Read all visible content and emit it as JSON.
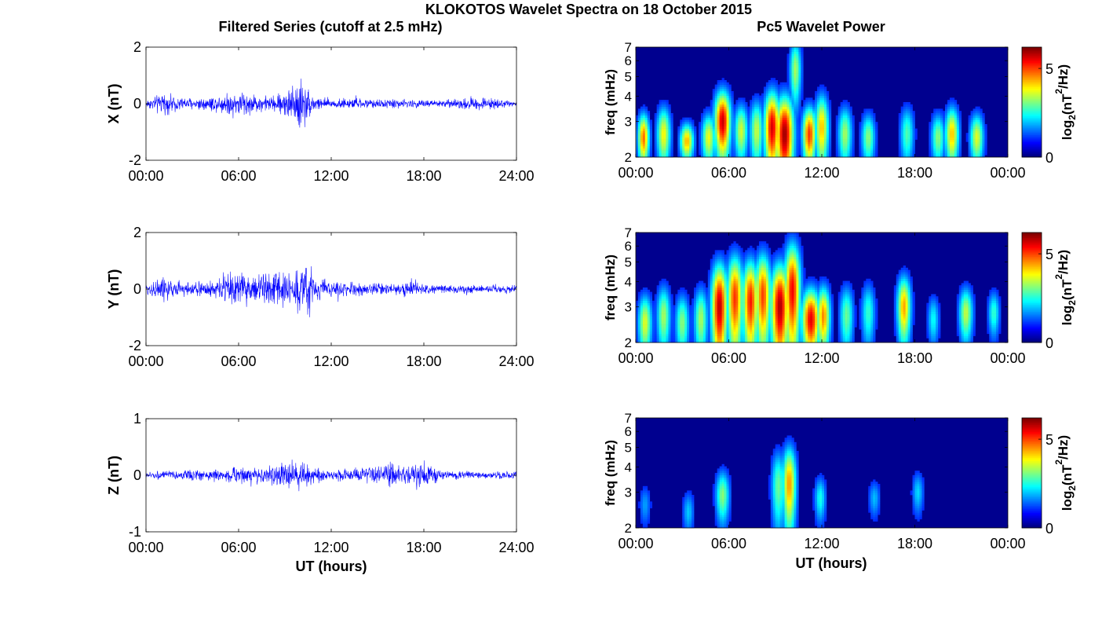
{
  "figure": {
    "title": "KLOKOTOS Wavelet Spectra on 18 October 2015",
    "left_title": "Filtered Series (cutoff at 2.5 mHz)",
    "right_title": "Pc5 Wavelet Power"
  },
  "chart_data": [
    {
      "type": "line",
      "panel": "X",
      "ylabel": "X (nT)",
      "xlabel": "",
      "xlim": [
        0,
        24
      ],
      "ylim": [
        -2,
        2
      ],
      "yticks": [
        "-2",
        "0",
        "2"
      ],
      "xticks": [
        "00:00",
        "06:00",
        "12:00",
        "18:00",
        "24:00"
      ],
      "color": "#0000ff",
      "envelope": {
        "hours": [
          0,
          1,
          2,
          3,
          4,
          5,
          6,
          7,
          8,
          9,
          9.5,
          10,
          10.3,
          11,
          12,
          13,
          14,
          15,
          16,
          17,
          18,
          19,
          20,
          21,
          22,
          23,
          24
        ],
        "amplitude_nT": [
          0.2,
          0.5,
          0.35,
          0.3,
          0.35,
          0.45,
          0.7,
          0.45,
          0.35,
          0.6,
          1.0,
          1.5,
          0.9,
          0.35,
          0.25,
          0.25,
          0.25,
          0.2,
          0.25,
          0.2,
          0.2,
          0.2,
          0.2,
          0.35,
          0.3,
          0.2,
          0.1
        ]
      }
    },
    {
      "type": "line",
      "panel": "Y",
      "ylabel": "Y (nT)",
      "xlabel": "",
      "xlim": [
        0,
        24
      ],
      "ylim": [
        -2,
        2
      ],
      "yticks": [
        "-2",
        "0",
        "2"
      ],
      "xticks": [
        "00:00",
        "06:00",
        "12:00",
        "18:00",
        "24:00"
      ],
      "color": "#0000ff",
      "envelope": {
        "hours": [
          0,
          1,
          2,
          3,
          4,
          5,
          5.5,
          6,
          7,
          8,
          9,
          10,
          10.2,
          11,
          12,
          13,
          14,
          15,
          16,
          17,
          17.5,
          18,
          19,
          20,
          21,
          22,
          23,
          24
        ],
        "amplitude_nT": [
          0.3,
          0.6,
          0.4,
          0.35,
          0.4,
          0.7,
          1.0,
          0.9,
          0.6,
          0.8,
          0.9,
          1.1,
          1.7,
          0.6,
          0.35,
          0.35,
          0.3,
          0.3,
          0.25,
          0.4,
          0.5,
          0.25,
          0.2,
          0.2,
          0.2,
          0.2,
          0.2,
          0.2
        ]
      }
    },
    {
      "type": "line",
      "panel": "Z",
      "ylabel": "Z (nT)",
      "xlabel": "UT (hours)",
      "xlim": [
        0,
        24
      ],
      "ylim": [
        -1,
        1
      ],
      "yticks": [
        "-1",
        "0",
        "1"
      ],
      "xticks": [
        "00:00",
        "06:00",
        "12:00",
        "18:00",
        "24:00"
      ],
      "color": "#0000ff",
      "envelope": {
        "hours": [
          0,
          1,
          2,
          3,
          4,
          5,
          6,
          7,
          8,
          9,
          10,
          11,
          12,
          13,
          14,
          15,
          16,
          17,
          18,
          19,
          20,
          21,
          22,
          23,
          24
        ],
        "amplitude_nT": [
          0.08,
          0.1,
          0.1,
          0.15,
          0.12,
          0.15,
          0.22,
          0.18,
          0.2,
          0.3,
          0.35,
          0.2,
          0.12,
          0.15,
          0.2,
          0.25,
          0.3,
          0.2,
          0.35,
          0.15,
          0.1,
          0.1,
          0.1,
          0.1,
          0.1
        ]
      }
    },
    {
      "type": "heatmap",
      "panel": "X",
      "ylabel": "freq (mHz)",
      "xlabel": "",
      "xlim": [
        0,
        24
      ],
      "ylim": [
        2,
        7
      ],
      "yscale": "log",
      "yticks": [
        "2",
        "3",
        "4",
        "5",
        "6",
        "7"
      ],
      "xticks": [
        "00:00",
        "06:00",
        "12:00",
        "18:00",
        "00:00"
      ],
      "colormap": "jet",
      "colorbar": {
        "label": "log2(nT2/Hz)",
        "range": [
          0,
          6.2
        ],
        "ticks": [
          "0",
          "5"
        ]
      },
      "blobs": [
        {
          "t": 0.5,
          "f": 2.5,
          "dt": 0.25,
          "df": 0.5,
          "p": 4.6
        },
        {
          "t": 1.8,
          "f": 2.6,
          "dt": 0.3,
          "df": 0.6,
          "p": 3.6
        },
        {
          "t": 3.3,
          "f": 2.4,
          "dt": 0.3,
          "df": 0.35,
          "p": 4.1
        },
        {
          "t": 4.7,
          "f": 2.5,
          "dt": 0.3,
          "df": 0.5,
          "p": 3.5
        },
        {
          "t": 5.6,
          "f": 3.0,
          "dt": 0.35,
          "df": 0.8,
          "p": 5.7
        },
        {
          "t": 6.8,
          "f": 2.7,
          "dt": 0.3,
          "df": 0.6,
          "p": 3.3
        },
        {
          "t": 7.8,
          "f": 2.7,
          "dt": 0.3,
          "df": 0.7,
          "p": 3.2
        },
        {
          "t": 8.8,
          "f": 2.8,
          "dt": 0.35,
          "df": 0.9,
          "p": 5.6
        },
        {
          "t": 9.6,
          "f": 2.6,
          "dt": 0.4,
          "df": 0.9,
          "p": 6.0
        },
        {
          "t": 10.3,
          "f": 5.4,
          "dt": 0.25,
          "df": 1.4,
          "p": 3.0
        },
        {
          "t": 11.2,
          "f": 2.6,
          "dt": 0.3,
          "df": 0.6,
          "p": 5.0
        },
        {
          "t": 12.0,
          "f": 2.8,
          "dt": 0.3,
          "df": 0.8,
          "p": 4.0
        },
        {
          "t": 13.5,
          "f": 2.6,
          "dt": 0.3,
          "df": 0.6,
          "p": 3.0
        },
        {
          "t": 15.0,
          "f": 2.5,
          "dt": 0.3,
          "df": 0.5,
          "p": 2.8
        },
        {
          "t": 17.5,
          "f": 2.6,
          "dt": 0.3,
          "df": 0.6,
          "p": 2.4
        },
        {
          "t": 19.5,
          "f": 2.5,
          "dt": 0.3,
          "df": 0.5,
          "p": 2.8
        },
        {
          "t": 20.4,
          "f": 2.6,
          "dt": 0.3,
          "df": 0.6,
          "p": 4.0
        },
        {
          "t": 22.0,
          "f": 2.5,
          "dt": 0.3,
          "df": 0.5,
          "p": 3.4
        }
      ]
    },
    {
      "type": "heatmap",
      "panel": "Y",
      "ylabel": "freq (mHz)",
      "xlabel": "",
      "xlim": [
        0,
        24
      ],
      "ylim": [
        2,
        7
      ],
      "yscale": "log",
      "yticks": [
        "2",
        "3",
        "4",
        "5",
        "6",
        "7"
      ],
      "xticks": [
        "00:00",
        "06:00",
        "12:00",
        "18:00",
        "00:00"
      ],
      "colormap": "jet",
      "colorbar": {
        "label": "log2(nT2/Hz)",
        "range": [
          0,
          6.2
        ],
        "ticks": [
          "0",
          "5"
        ]
      },
      "blobs": [
        {
          "t": 0.6,
          "f": 2.5,
          "dt": 0.3,
          "df": 0.6,
          "p": 3.4
        },
        {
          "t": 1.8,
          "f": 2.7,
          "dt": 0.3,
          "df": 0.7,
          "p": 3.0
        },
        {
          "t": 3.0,
          "f": 2.5,
          "dt": 0.3,
          "df": 0.6,
          "p": 2.8
        },
        {
          "t": 4.2,
          "f": 2.6,
          "dt": 0.3,
          "df": 0.7,
          "p": 3.0
        },
        {
          "t": 5.4,
          "f": 3.0,
          "dt": 0.35,
          "df": 1.2,
          "p": 5.8
        },
        {
          "t": 6.4,
          "f": 3.3,
          "dt": 0.35,
          "df": 1.3,
          "p": 5.0
        },
        {
          "t": 7.4,
          "f": 3.2,
          "dt": 0.35,
          "df": 1.2,
          "p": 5.2
        },
        {
          "t": 8.2,
          "f": 3.4,
          "dt": 0.35,
          "df": 1.3,
          "p": 4.9
        },
        {
          "t": 9.3,
          "f": 3.0,
          "dt": 0.4,
          "df": 1.2,
          "p": 5.9
        },
        {
          "t": 10.1,
          "f": 3.6,
          "dt": 0.35,
          "df": 1.6,
          "p": 5.4
        },
        {
          "t": 11.3,
          "f": 2.6,
          "dt": 0.4,
          "df": 0.7,
          "p": 5.5
        },
        {
          "t": 12.1,
          "f": 2.7,
          "dt": 0.3,
          "df": 0.7,
          "p": 4.4
        },
        {
          "t": 13.6,
          "f": 2.7,
          "dt": 0.3,
          "df": 0.7,
          "p": 2.6
        },
        {
          "t": 15.0,
          "f": 2.8,
          "dt": 0.3,
          "df": 0.7,
          "p": 2.2
        },
        {
          "t": 17.3,
          "f": 3.0,
          "dt": 0.3,
          "df": 0.8,
          "p": 4.2
        },
        {
          "t": 19.2,
          "f": 2.6,
          "dt": 0.25,
          "df": 0.5,
          "p": 1.9
        },
        {
          "t": 21.3,
          "f": 2.8,
          "dt": 0.3,
          "df": 0.6,
          "p": 3.2
        },
        {
          "t": 23.1,
          "f": 2.8,
          "dt": 0.25,
          "df": 0.5,
          "p": 2.2
        }
      ]
    },
    {
      "type": "heatmap",
      "panel": "Z",
      "ylabel": "freq (mHz)",
      "xlabel": "UT (hours)",
      "xlim": [
        0,
        24
      ],
      "ylim": [
        2,
        7
      ],
      "yscale": "log",
      "yticks": [
        "2",
        "3",
        "4",
        "5",
        "6",
        "7"
      ],
      "xticks": [
        "00:00",
        "06:00",
        "12:00",
        "18:00",
        "00:00"
      ],
      "colormap": "jet",
      "colorbar": {
        "label": "log2(nT2/Hz)",
        "range": [
          0,
          6.2
        ],
        "ticks": [
          "0",
          "5"
        ]
      },
      "blobs": [
        {
          "t": 0.6,
          "f": 2.6,
          "dt": 0.25,
          "df": 0.4,
          "p": 1.2
        },
        {
          "t": 3.4,
          "f": 2.4,
          "dt": 0.25,
          "df": 0.4,
          "p": 1.5
        },
        {
          "t": 5.6,
          "f": 2.9,
          "dt": 0.3,
          "df": 0.6,
          "p": 2.8
        },
        {
          "t": 9.2,
          "f": 3.2,
          "dt": 0.3,
          "df": 1.0,
          "p": 2.6
        },
        {
          "t": 9.9,
          "f": 3.3,
          "dt": 0.3,
          "df": 1.1,
          "p": 4.3
        },
        {
          "t": 11.9,
          "f": 2.8,
          "dt": 0.25,
          "df": 0.5,
          "p": 2.0
        },
        {
          "t": 15.4,
          "f": 2.8,
          "dt": 0.25,
          "df": 0.4,
          "p": 1.4
        },
        {
          "t": 18.2,
          "f": 3.0,
          "dt": 0.25,
          "df": 0.5,
          "p": 1.6
        }
      ]
    }
  ]
}
